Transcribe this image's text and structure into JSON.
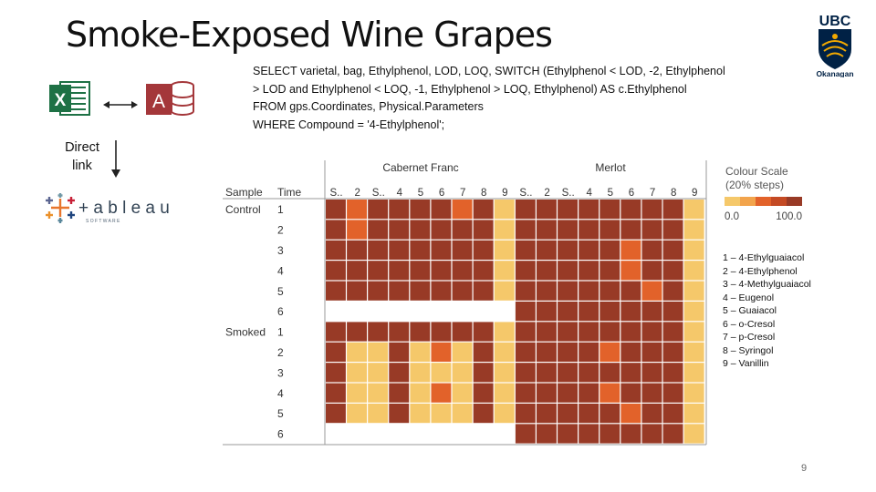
{
  "slide": {
    "title": "Smoke-Exposed Wine Grapes",
    "sql_lines": [
      "SELECT varietal, bag, Ethylphenol, LOD, LOQ, SWITCH (Ethylphenol < LOD, -2, Ethylphenol",
      "> LOD and Ethylphenol < LOQ, -1, Ethylphenol > LOQ, Ethylphenol) AS c.Ethylphenol",
      "FROM gps.Coordinates, Physical.Parameters",
      "WHERE Compound = '4-Ethylphenol';"
    ],
    "direct_link_lines": [
      "Direct",
      "link"
    ],
    "logo_ubc_text": "UBC",
    "logo_ubc_sub": "Okanagan",
    "logo_excel_letter": "X",
    "logo_access_letter": "A",
    "logo_tableau_text": "+ a b l e a u",
    "logo_tableau_sub": "S O F T W A R E",
    "page_number": "9"
  },
  "heatmap": {
    "column_groups": [
      "Cabernet Franc",
      "Merlot"
    ],
    "header_sample": "Sample",
    "header_time": "Time",
    "column_labels": [
      "S..",
      "2",
      "S..",
      "4",
      "5",
      "6",
      "7",
      "8",
      "9",
      "S..",
      "2",
      "S..",
      "4",
      "5",
      "6",
      "7",
      "8",
      "9"
    ],
    "row_groups": [
      {
        "label": "Control",
        "times": [
          "1",
          "2",
          "3",
          "4",
          "5",
          "6"
        ]
      },
      {
        "label": "Smoked",
        "times": [
          "1",
          "2",
          "3",
          "4",
          "5",
          "6"
        ]
      }
    ],
    "colors": {
      "0": "#f5c86a",
      "1": "#e2622a",
      "2": "#983a26",
      "blank": "#ffffff"
    },
    "matrix": [
      [
        2,
        1,
        2,
        2,
        2,
        2,
        1,
        2,
        0,
        2,
        2,
        2,
        2,
        2,
        2,
        2,
        2,
        0
      ],
      [
        2,
        1,
        2,
        2,
        2,
        2,
        2,
        2,
        0,
        2,
        2,
        2,
        2,
        2,
        2,
        2,
        2,
        0
      ],
      [
        2,
        2,
        2,
        2,
        2,
        2,
        2,
        2,
        0,
        2,
        2,
        2,
        2,
        2,
        1,
        2,
        2,
        0
      ],
      [
        2,
        2,
        2,
        2,
        2,
        2,
        2,
        2,
        0,
        2,
        2,
        2,
        2,
        2,
        1,
        2,
        2,
        0
      ],
      [
        2,
        2,
        2,
        2,
        2,
        2,
        2,
        2,
        0,
        2,
        2,
        2,
        2,
        2,
        2,
        1,
        2,
        0
      ],
      [
        -1,
        -1,
        -1,
        -1,
        -1,
        -1,
        -1,
        -1,
        -1,
        2,
        2,
        2,
        2,
        2,
        2,
        2,
        2,
        0
      ],
      [
        2,
        2,
        2,
        2,
        2,
        2,
        2,
        2,
        0,
        2,
        2,
        2,
        2,
        2,
        2,
        2,
        2,
        0
      ],
      [
        2,
        0,
        0,
        2,
        0,
        1,
        0,
        2,
        0,
        2,
        2,
        2,
        2,
        1,
        2,
        2,
        2,
        0
      ],
      [
        2,
        0,
        0,
        2,
        0,
        0,
        0,
        2,
        0,
        2,
        2,
        2,
        2,
        2,
        2,
        2,
        2,
        0
      ],
      [
        2,
        0,
        0,
        2,
        0,
        1,
        0,
        2,
        0,
        2,
        2,
        2,
        2,
        1,
        2,
        2,
        2,
        0
      ],
      [
        2,
        0,
        0,
        2,
        0,
        0,
        0,
        2,
        0,
        2,
        2,
        2,
        2,
        2,
        1,
        2,
        2,
        0
      ],
      [
        -1,
        -1,
        -1,
        -1,
        -1,
        -1,
        -1,
        -1,
        -1,
        2,
        2,
        2,
        2,
        2,
        2,
        2,
        2,
        0
      ]
    ],
    "scale": {
      "title": "Colour Scale",
      "subtitle": "(20% steps)",
      "min_label": "0.0",
      "max_label": "100.0",
      "swatches": [
        "#f5c86a",
        "#f2a44c",
        "#e2622a",
        "#c44a24",
        "#983a26"
      ]
    },
    "compound_legend": [
      "1 – 4-Ethylguaiacol",
      "2 – 4-Ethylphenol",
      "3 – 4-Methylguaiacol",
      "4 – Eugenol",
      "5 – Guaiacol",
      "6 – o-Cresol",
      "7 – p-Cresol",
      "8 – Syringol",
      "9 – Vanillin"
    ]
  }
}
